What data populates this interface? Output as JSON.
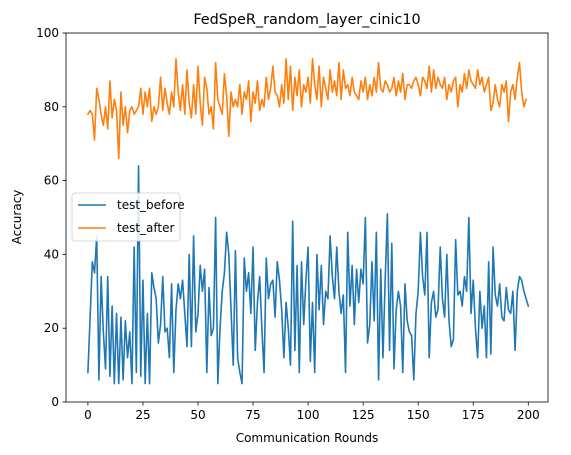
{
  "chart_data": {
    "type": "line",
    "title": "FedSpeR_random_layer_cinic10",
    "xlabel": "Communication Rounds",
    "ylabel": "Accuracy",
    "xlim": [
      -9.95,
      208.95
    ],
    "ylim": [
      0,
      100
    ],
    "xticks": [
      0,
      25,
      50,
      75,
      100,
      125,
      150,
      175,
      200
    ],
    "yticks": [
      0,
      20,
      40,
      60,
      80,
      100
    ],
    "grid": false,
    "legend_position": "center-left",
    "series": [
      {
        "name": "test_before",
        "color": "#1f77b4",
        "values": [
          8,
          23,
          38,
          35,
          45,
          6,
          34,
          19,
          9,
          34,
          7,
          26,
          5,
          24,
          5,
          23,
          6,
          22,
          12,
          19,
          5,
          42,
          8,
          64,
          7,
          33,
          5,
          24,
          5,
          35,
          31,
          28,
          16,
          21,
          34,
          19,
          20,
          12,
          32,
          8,
          25,
          32,
          28,
          33,
          24,
          15,
          40,
          15,
          45,
          19,
          24,
          37,
          30,
          36,
          8,
          31,
          18,
          20,
          50,
          5,
          20,
          30,
          35,
          46,
          40,
          25,
          10,
          41,
          12,
          8,
          5,
          39,
          30,
          35,
          24,
          42,
          14,
          27,
          34,
          20,
          8,
          39,
          28,
          32,
          33,
          23,
          38,
          33,
          25,
          12,
          27,
          20,
          10,
          49,
          14,
          37,
          8,
          38,
          21,
          33,
          42,
          11,
          27,
          8,
          40,
          25,
          37,
          21,
          30,
          28,
          45,
          34,
          28,
          42,
          30,
          24,
          29,
          8,
          46,
          26,
          37,
          21,
          36,
          27,
          36,
          32,
          50,
          16,
          21,
          38,
          22,
          46,
          6,
          36,
          12,
          33,
          51,
          14,
          43,
          9,
          25,
          30,
          26,
          8,
          32,
          22,
          19,
          18,
          6,
          24,
          30,
          46,
          34,
          29,
          46,
          12,
          27,
          30,
          23,
          25,
          42,
          28,
          23,
          40,
          22,
          15,
          17,
          44,
          29,
          30,
          26,
          34,
          30,
          50,
          24,
          33,
          20,
          12,
          30,
          20,
          26,
          12,
          38,
          13,
          42,
          29,
          26,
          32,
          23,
          22,
          31,
          25,
          24,
          30,
          14,
          30,
          34,
          33,
          30,
          28,
          26
        ]
      },
      {
        "name": "test_after",
        "color": "#ff7f0e",
        "values": [
          78,
          79,
          78,
          71,
          85,
          82,
          78,
          75,
          80,
          74,
          87,
          77,
          82,
          79,
          66,
          84,
          75,
          80,
          73,
          79,
          80,
          78,
          79,
          80,
          85,
          78,
          84,
          80,
          85,
          76,
          80,
          78,
          80,
          88,
          79,
          85,
          81,
          78,
          84,
          80,
          93,
          84,
          79,
          86,
          78,
          90,
          81,
          77,
          86,
          78,
          91,
          81,
          75,
          88,
          85,
          78,
          80,
          74,
          92,
          82,
          80,
          78,
          89,
          83,
          72,
          84,
          80,
          82,
          80,
          86,
          78,
          84,
          82,
          87,
          76,
          84,
          81,
          87,
          79,
          82,
          80,
          88,
          82,
          85,
          91,
          84,
          83,
          80,
          86,
          81,
          93,
          82,
          91,
          79,
          88,
          83,
          90,
          80,
          86,
          84,
          88,
          81,
          93,
          86,
          82,
          91,
          80,
          88,
          85,
          82,
          90,
          84,
          87,
          83,
          92,
          82,
          90,
          85,
          86,
          83,
          88,
          84,
          83,
          82,
          87,
          84,
          88,
          82,
          86,
          83,
          88,
          84,
          92,
          85,
          84,
          87,
          86,
          84,
          85,
          88,
          83,
          87,
          84,
          89,
          82,
          86,
          86,
          85,
          87,
          88,
          86,
          83,
          88,
          87,
          85,
          91,
          84,
          90,
          85,
          88,
          86,
          85,
          88,
          82,
          86,
          84,
          87,
          88,
          80,
          86,
          84,
          89,
          85,
          90,
          87,
          86,
          85,
          90,
          86,
          88,
          84,
          86,
          88,
          79,
          81,
          86,
          82,
          80,
          86,
          84,
          87,
          76,
          84,
          86,
          82,
          88,
          92,
          84,
          80,
          82
        ]
      }
    ]
  }
}
